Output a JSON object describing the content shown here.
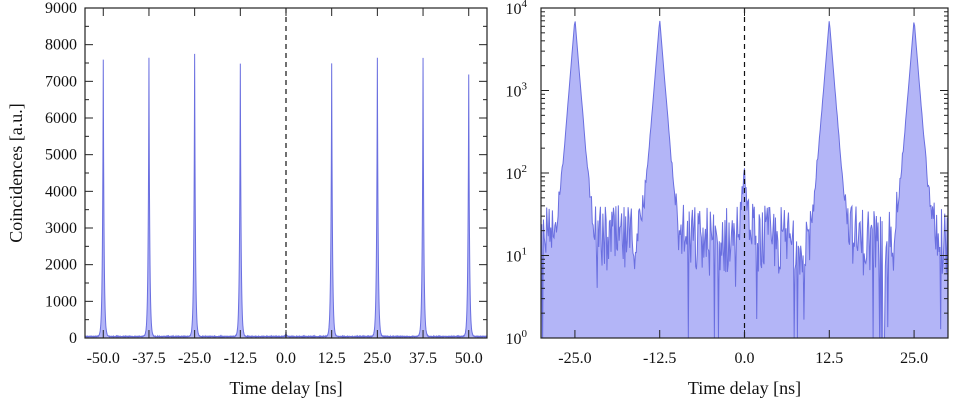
{
  "chart_data": [
    {
      "type": "area",
      "xlabel": "Time delay [ns]",
      "ylabel": "Coincidences [a.u.]",
      "xlim": [
        -55,
        55
      ],
      "ylim": [
        0,
        9000
      ],
      "yscale": "linear",
      "xticks": [
        -50.0,
        -37.5,
        -25.0,
        -12.5,
        0.0,
        12.5,
        25.0,
        37.5,
        50.0
      ],
      "xtick_labels": [
        "-50.0",
        "-37.5",
        "-25.0",
        "-12.5",
        "0.0",
        "12.5",
        "25.0",
        "37.5",
        "50.0"
      ],
      "yticks": [
        0,
        1000,
        2000,
        3000,
        4000,
        5000,
        6000,
        7000,
        8000,
        9000
      ],
      "ytick_labels": [
        "0",
        "1000",
        "2000",
        "3000",
        "4000",
        "5000",
        "6000",
        "7000",
        "8000",
        "9000"
      ],
      "peaks": [
        {
          "x": -50.0,
          "y": 7550
        },
        {
          "x": -37.5,
          "y": 7600
        },
        {
          "x": -25.0,
          "y": 7700
        },
        {
          "x": -12.5,
          "y": 7450
        },
        {
          "x": 0.0,
          "y": 80
        },
        {
          "x": 12.5,
          "y": 7450
        },
        {
          "x": 25.0,
          "y": 7600
        },
        {
          "x": 37.5,
          "y": 7600
        },
        {
          "x": 50.0,
          "y": 7150
        }
      ],
      "dashed_line_x": 0,
      "grid": false
    },
    {
      "type": "area",
      "xlabel": "Time delay [ns]",
      "ylabel": "",
      "xlim": [
        -30,
        30
      ],
      "ylim": [
        1,
        10000
      ],
      "yscale": "log",
      "xticks": [
        -25.0,
        -12.5,
        0.0,
        12.5,
        25.0
      ],
      "xtick_labels": [
        "-25.0",
        "-12.5",
        "0.0",
        "12.5",
        "25.0"
      ],
      "yticks": [
        1,
        10,
        100,
        1000,
        10000
      ],
      "ytick_labels": [
        {
          "base": "10",
          "exp": "0"
        },
        {
          "base": "10",
          "exp": "1"
        },
        {
          "base": "10",
          "exp": "2"
        },
        {
          "base": "10",
          "exp": "3"
        },
        {
          "base": "10",
          "exp": "4"
        }
      ],
      "peaks": [
        {
          "x": -25.0,
          "y": 7500
        },
        {
          "x": -12.5,
          "y": 7300
        },
        {
          "x": 0.0,
          "y": 80
        },
        {
          "x": 12.5,
          "y": 7200
        },
        {
          "x": 25.0,
          "y": 7300
        }
      ],
      "background_level": 15,
      "dashed_line_x": 0,
      "grid": false
    }
  ],
  "colors": {
    "fill": "#b3b5f7",
    "stroke": "#6a6fe0"
  }
}
